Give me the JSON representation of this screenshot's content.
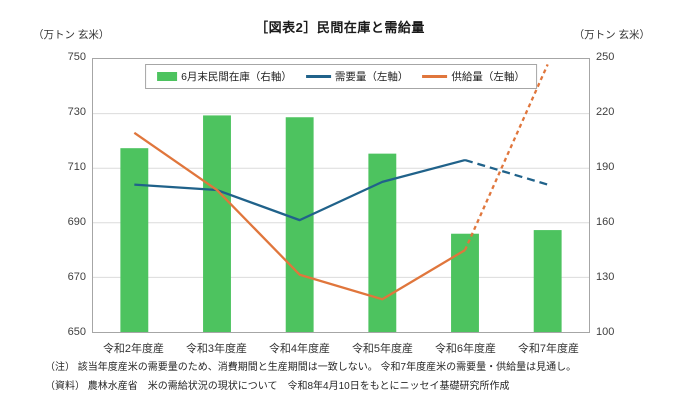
{
  "chart_data": {
    "type": "combo-bar-line",
    "title": "［図表2］民間在庫と需給量",
    "categories": [
      "令和2年度産",
      "令和3年度産",
      "令和4年度産",
      "令和5年度産",
      "令和6年度産",
      "令和7年度産"
    ],
    "left_axis": {
      "label": "（万トン 玄米）",
      "min": 650,
      "max": 750,
      "ticks": [
        650,
        670,
        690,
        710,
        730,
        750
      ]
    },
    "right_axis": {
      "label": "（万トン 玄米）",
      "min": 100,
      "max": 250,
      "ticks": [
        100,
        130,
        160,
        190,
        220,
        250
      ]
    },
    "grid": true,
    "legend_position": "top-center-inside",
    "series": [
      {
        "key": "inventory",
        "name": "6月末民間在庫（右軸）",
        "type": "bar",
        "axis": "right",
        "color": "#4dc35f",
        "values": [
          201,
          219,
          218,
          198,
          154,
          156
        ]
      },
      {
        "key": "demand",
        "name": "需要量（左軸）",
        "type": "line",
        "axis": "left",
        "color": "#20628a",
        "values": [
          704,
          702,
          691,
          705,
          713,
          704
        ],
        "dashed_from_index": 4,
        "dash_pattern": "8 5"
      },
      {
        "key": "supply",
        "name": "供給量（左軸）",
        "type": "line",
        "axis": "left",
        "color": "#e0763c",
        "values": [
          723,
          702,
          671,
          662,
          680,
          748
        ],
        "dashed_from_index": 4,
        "dash_pattern": "4 3.5"
      }
    ]
  },
  "notes": {
    "note": "（注） 該当年度産米の需要量のため、消費期間と生産期間は一致しない。 令和7年度産米の需要量・供給量は見通し。",
    "source": "（資料） 農林水産省　米の需給状況の現状について　令和8年4月10日をもとにニッセイ基礎研究所作成"
  }
}
